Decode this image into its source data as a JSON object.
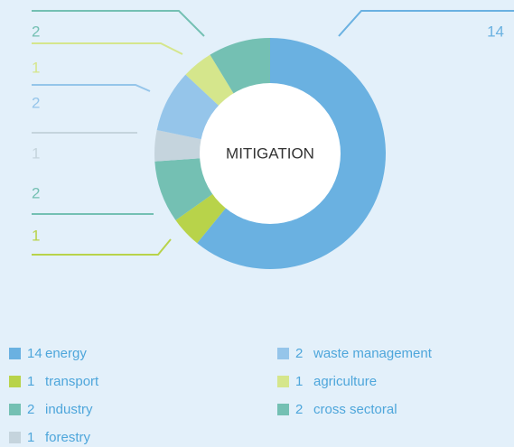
{
  "chart_data": {
    "type": "donut",
    "title": "MITIGATION",
    "categories": [
      "energy",
      "transport",
      "industry",
      "forestry",
      "waste management",
      "agriculture",
      "cross sectoral"
    ],
    "values": [
      14,
      1,
      2,
      1,
      2,
      1,
      2
    ],
    "colors": [
      "#6ab1e1",
      "#b8d34a",
      "#74c0b3",
      "#c5d4dd",
      "#95c5ea",
      "#d5e68c",
      "#74c0b3"
    ]
  }
}
